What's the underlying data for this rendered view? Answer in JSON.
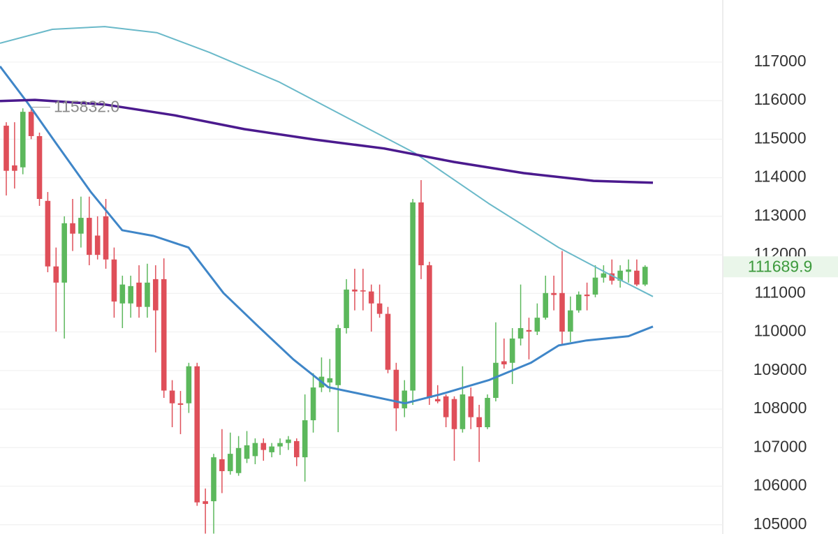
{
  "chart_data": {
    "type": "candlestick",
    "categories": [
      null,
      null,
      null,
      null,
      null,
      null,
      null,
      null,
      null,
      null,
      null,
      null,
      null,
      null,
      null,
      null,
      null,
      null,
      null,
      null,
      null,
      null,
      null,
      null,
      null,
      null,
      null,
      null,
      null,
      null,
      null,
      null,
      null,
      null,
      null,
      null,
      null,
      null,
      null,
      null,
      null,
      null,
      null,
      null,
      null,
      null,
      null,
      null,
      null,
      null,
      null,
      null,
      null,
      null,
      null,
      null,
      null,
      null,
      null,
      null,
      null,
      null,
      null,
      null,
      null,
      null,
      null,
      null,
      null,
      null,
      null,
      null,
      null,
      null,
      null,
      null,
      null,
      null
    ],
    "open": [
      115350,
      114320,
      114270,
      115710,
      115080,
      113400,
      111700,
      111280,
      112820,
      112550,
      112960,
      112500,
      113000,
      111880,
      110740,
      110740,
      111280,
      110650,
      111370,
      111370,
      108480,
      108150,
      108150,
      109110,
      105610,
      105610,
      106700,
      106390,
      106340,
      106710,
      106780,
      107120,
      106880,
      107030,
      107120,
      107170,
      106750,
      107710,
      108560,
      108690,
      108620,
      110100,
      111100,
      111080,
      111050,
      110740,
      110470,
      109020,
      108020,
      108480,
      113360,
      111730,
      108260,
      108330,
      108260,
      107480,
      108330,
      107790,
      107530,
      108290,
      109240,
      109200,
      109830,
      110050,
      110010,
      110370,
      111010,
      111010,
      110010,
      110560,
      110970,
      110970,
      111410,
      111520,
      111330,
      111560,
      111590,
      111230
    ],
    "high": [
      115440,
      115440,
      115800,
      115800,
      115170,
      113630,
      112190,
      113000,
      113450,
      113510,
      113510,
      113000,
      113450,
      112190,
      111460,
      111460,
      111730,
      111770,
      111730,
      111910,
      108750,
      108470,
      109200,
      109200,
      105940,
      106840,
      107480,
      107390,
      107300,
      107430,
      107240,
      107240,
      107120,
      107240,
      107300,
      107240,
      108380,
      108930,
      109340,
      109300,
      110190,
      111370,
      111640,
      111640,
      111230,
      111230,
      110650,
      109200,
      108750,
      113450,
      113940,
      111820,
      108620,
      108380,
      108330,
      109110,
      108560,
      108110,
      108380,
      110250,
      109830,
      110100,
      111230,
      110370,
      110740,
      111460,
      111460,
      112100,
      110920,
      111050,
      111280,
      111730,
      111730,
      111880,
      111730,
      111880,
      111880,
      111730
    ],
    "low": [
      113540,
      113720,
      114090,
      115000,
      113270,
      111550,
      110010,
      109830,
      112100,
      112190,
      111730,
      111880,
      111640,
      110370,
      110100,
      110370,
      110370,
      110370,
      109470,
      108290,
      107530,
      107350,
      107900,
      105490,
      104770,
      104770,
      105820,
      106300,
      106270,
      106600,
      106570,
      106660,
      106750,
      106810,
      106940,
      106520,
      106120,
      107390,
      108440,
      108440,
      107400,
      109960,
      110560,
      110560,
      110010,
      110370,
      108930,
      107430,
      107790,
      108110,
      111370,
      108110,
      108150,
      107530,
      106660,
      107390,
      107480,
      106630,
      107480,
      108200,
      109050,
      108650,
      109650,
      109290,
      109920,
      110320,
      110560,
      109650,
      109740,
      110500,
      110560,
      110900,
      111280,
      111230,
      111150,
      111280,
      111190,
      111190
    ],
    "close": [
      114180,
      114180,
      115710,
      115080,
      113450,
      111700,
      111280,
      112820,
      112550,
      112960,
      112000,
      112000,
      111880,
      110790,
      111230,
      111190,
      110650,
      111280,
      110560,
      108480,
      108150,
      108110,
      109110,
      105580,
      105540,
      106750,
      106390,
      106840,
      106990,
      107060,
      107120,
      106940,
      107030,
      107120,
      107210,
      106750,
      107710,
      108560,
      108840,
      108800,
      110100,
      111100,
      111050,
      111050,
      110740,
      110470,
      109020,
      108020,
      108480,
      113360,
      111730,
      108290,
      108200,
      107790,
      107480,
      108380,
      107790,
      107530,
      108290,
      109200,
      109160,
      109830,
      110100,
      110010,
      110370,
      111010,
      110960,
      110010,
      110560,
      110970,
      110930,
      111410,
      111520,
      111330,
      111590,
      111620,
      111230,
      111690
    ],
    "up_color": "#5cb85c",
    "down_color": "#df4f59",
    "lines": [
      {
        "color": "#6ab9c9",
        "width": 2,
        "x": [
          -0.76,
          5.56,
          11.87,
          18.18,
          24.49,
          32.91,
          41.33,
          49.33,
          58.16,
          66.58,
          72.47,
          77.95
        ],
        "values": [
          117490,
          117850,
          117920,
          117760,
          117250,
          116480,
          115530,
          114630,
          113330,
          112190,
          111520,
          110920
        ]
      },
      {
        "color": "#3f86c8",
        "width": 3,
        "x": [
          -0.76,
          2.61,
          5.98,
          10.19,
          13.97,
          17.76,
          21.97,
          26.18,
          30.39,
          34.6,
          38.8,
          43.01,
          48.06,
          52.27,
          58.16,
          63.22,
          66.58,
          69.95,
          75.0,
          77.95
        ],
        "values": [
          116890,
          115930,
          114900,
          113630,
          112640,
          112490,
          112190,
          111010,
          110140,
          109290,
          108570,
          108380,
          108150,
          108380,
          108750,
          109200,
          109650,
          109780,
          109890,
          110140
        ]
      },
      {
        "color": "#4b1a8e",
        "width": 3.5,
        "x": [
          -0.76,
          3.45,
          11.87,
          20.29,
          28.7,
          37.12,
          45.54,
          53.96,
          62.37,
          70.79,
          77.95
        ],
        "values": [
          115990,
          116020,
          115900,
          115620,
          115260,
          114990,
          114760,
          114410,
          114120,
          113920,
          113870
        ]
      }
    ],
    "annotation": {
      "value": 115832,
      "label": "115832.0"
    },
    "last_price": 111689.9,
    "ylim": [
      104760,
      118610
    ],
    "yticks": [
      105000,
      106000,
      107000,
      108000,
      109000,
      110000,
      111000,
      112000,
      113000,
      114000,
      115000,
      116000,
      117000
    ],
    "grid": true
  }
}
